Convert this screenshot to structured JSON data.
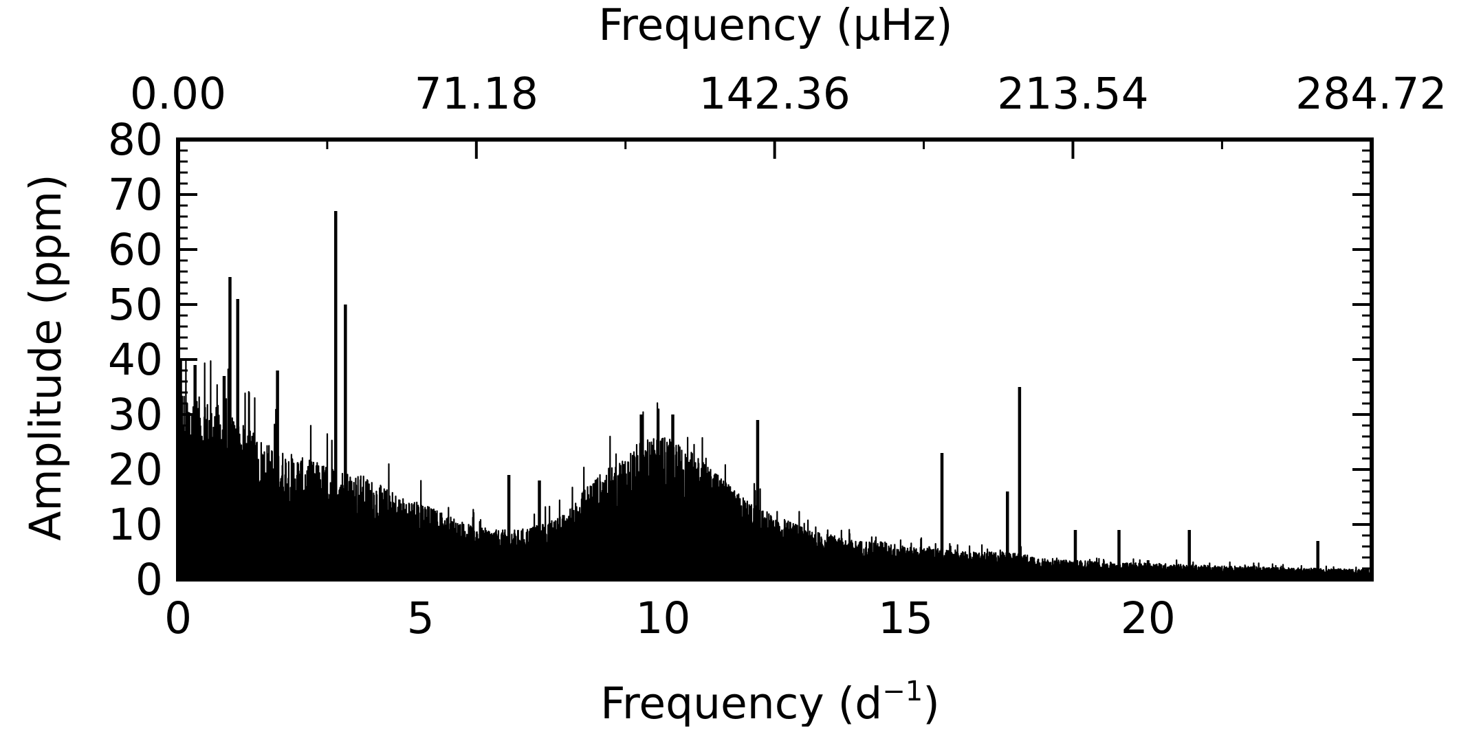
{
  "chart_data": {
    "type": "line",
    "title": "",
    "xlabel": "Frequency (d",
    "xlabel_superscript": "−1",
    "xlabel_suffix": ")",
    "ylabel": "Amplitude (ppm)",
    "top_xlabel": "Frequency (μHz)",
    "xlim": [
      0,
      24.61
    ],
    "ylim": [
      0,
      80
    ],
    "x_ticks": [
      0,
      5,
      10,
      15,
      20
    ],
    "x_tick_labels": [
      "0",
      "5",
      "10",
      "15",
      "20"
    ],
    "y_ticks": [
      0,
      10,
      20,
      30,
      40,
      50,
      60,
      70,
      80
    ],
    "y_tick_labels": [
      "0",
      "10",
      "20",
      "30",
      "40",
      "50",
      "60",
      "70",
      "80"
    ],
    "top_x_ticks_in_bottom_units": [
      0,
      6.15,
      12.3,
      18.45,
      24.6
    ],
    "top_x_tick_labels": [
      "0.00",
      "71.18",
      "142.36",
      "213.54",
      "284.72"
    ],
    "grid": false,
    "legend": "none",
    "color": "#000000",
    "envelope": {
      "x": [
        0.0,
        0.2,
        0.5,
        0.8,
        1.0,
        1.2,
        1.5,
        1.8,
        2.0,
        2.3,
        2.6,
        3.0,
        3.4,
        3.8,
        4.2,
        4.6,
        5.0,
        5.5,
        6.0,
        6.5,
        7.0,
        7.5,
        8.0,
        8.5,
        9.0,
        9.5,
        10.0,
        10.5,
        11.0,
        11.5,
        12.0,
        12.5,
        13.0,
        13.5,
        14.0,
        14.5,
        15.0,
        15.5,
        16.0,
        16.5,
        17.0,
        17.5,
        18.0,
        18.5,
        19.0,
        19.5,
        20.0,
        20.5,
        21.0,
        21.5,
        22.0,
        22.5,
        23.0,
        23.5,
        24.0,
        24.5
      ],
      "y": [
        36,
        34,
        33,
        32,
        31,
        29,
        27,
        25,
        24,
        23,
        22,
        21,
        20,
        19,
        17,
        15,
        14,
        12,
        10,
        9,
        9,
        10,
        12,
        18,
        21,
        25,
        26,
        24,
        20,
        16,
        13,
        11,
        9,
        8,
        7,
        7,
        6,
        6,
        5,
        5,
        5,
        4.5,
        3.5,
        3.5,
        3.2,
        3,
        3,
        2.8,
        2.6,
        2.5,
        2.4,
        2.2,
        2.1,
        2.0,
        1.9,
        1.8
      ]
    },
    "peaks": [
      {
        "x": 0.05,
        "y": 40
      },
      {
        "x": 0.35,
        "y": 39
      },
      {
        "x": 0.95,
        "y": 37
      },
      {
        "x": 1.07,
        "y": 55
      },
      {
        "x": 1.23,
        "y": 51
      },
      {
        "x": 2.05,
        "y": 38
      },
      {
        "x": 3.25,
        "y": 67
      },
      {
        "x": 3.45,
        "y": 50
      },
      {
        "x": 6.82,
        "y": 19
      },
      {
        "x": 7.45,
        "y": 18
      },
      {
        "x": 9.55,
        "y": 30
      },
      {
        "x": 10.2,
        "y": 30
      },
      {
        "x": 11.95,
        "y": 29
      },
      {
        "x": 15.75,
        "y": 23
      },
      {
        "x": 17.1,
        "y": 16
      },
      {
        "x": 17.35,
        "y": 35
      },
      {
        "x": 18.5,
        "y": 9
      },
      {
        "x": 19.4,
        "y": 9
      },
      {
        "x": 20.85,
        "y": 9
      },
      {
        "x": 23.5,
        "y": 7
      }
    ]
  }
}
